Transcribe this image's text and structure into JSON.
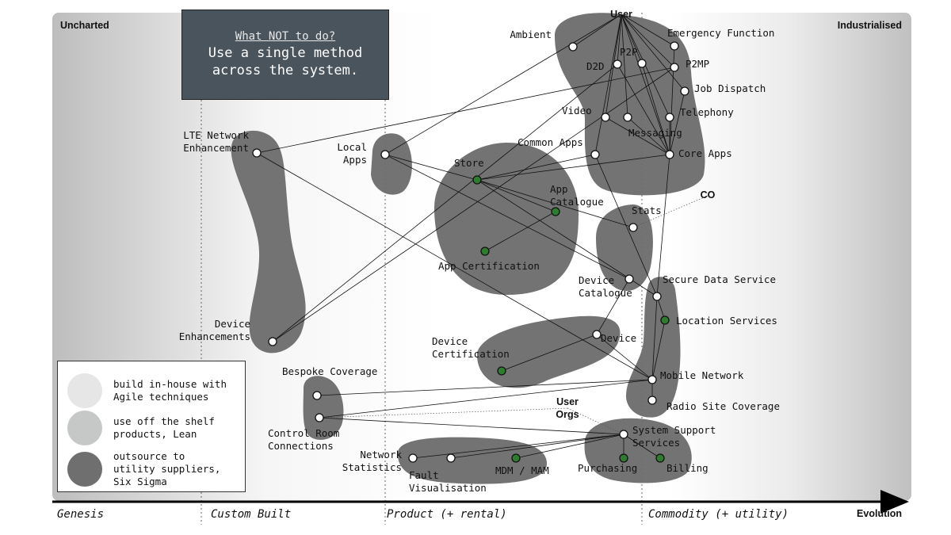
{
  "corners": {
    "left": "Uncharted",
    "right": "Industrialised"
  },
  "note": {
    "title": "What NOT to do?",
    "text": "Use a single method across the system."
  },
  "stages": [
    "Genesis",
    "Custom Built",
    "Product (+ rental)",
    "Commodity (+ utility)"
  ],
  "axis_label": "Evolution",
  "legend": [
    {
      "text": "build in-house with\nAgile techniques",
      "color": "#e6e6e6"
    },
    {
      "text": "use off the shelf\nproducts, Lean",
      "color": "#c6c8c8"
    },
    {
      "text": "outsource to\nutility suppliers,\nSix Sigma",
      "color": "#6f6f6f"
    }
  ],
  "colors": {
    "cluster": "#6b6b6b",
    "component": "#ffffff",
    "outsourced_component": "#2e7d2e",
    "note_bg": "#4a545c"
  },
  "anchors": [
    {
      "id": "user",
      "label": "User"
    },
    {
      "id": "co",
      "label": "CO"
    },
    {
      "id": "userorgs",
      "label": "User\nOrgs"
    }
  ],
  "components": [
    {
      "id": "ambient",
      "label": "Ambient",
      "type": "normal"
    },
    {
      "id": "emergency",
      "label": "Emergency Function",
      "type": "normal"
    },
    {
      "id": "p2p",
      "label": "P2P",
      "type": "normal"
    },
    {
      "id": "d2d",
      "label": "D2D",
      "type": "normal"
    },
    {
      "id": "p2mp",
      "label": "P2MP",
      "type": "normal"
    },
    {
      "id": "jobdispatch",
      "label": "Job Dispatch",
      "type": "normal"
    },
    {
      "id": "video",
      "label": "Video",
      "type": "normal"
    },
    {
      "id": "messaging",
      "label": "Messaging",
      "type": "normal"
    },
    {
      "id": "telephony",
      "label": "Telephony",
      "type": "normal"
    },
    {
      "id": "commonapps",
      "label": "Common Apps",
      "type": "normal"
    },
    {
      "id": "coreapps",
      "label": "Core Apps",
      "type": "normal"
    },
    {
      "id": "lte",
      "label": "LTE Network\nEnhancement",
      "type": "normal"
    },
    {
      "id": "localapps",
      "label": "Local\nApps",
      "type": "normal"
    },
    {
      "id": "store",
      "label": "Store",
      "type": "outsourced"
    },
    {
      "id": "appcatalogue",
      "label": "App\nCatalogue",
      "type": "outsourced"
    },
    {
      "id": "appcert",
      "label": "App Certification",
      "type": "outsourced"
    },
    {
      "id": "stats",
      "label": "Stats",
      "type": "normal"
    },
    {
      "id": "devicecatalogue",
      "label": "Device\nCatalogue",
      "type": "normal"
    },
    {
      "id": "securedata",
      "label": "Secure Data Service",
      "type": "normal"
    },
    {
      "id": "location",
      "label": "Location Services",
      "type": "outsourced"
    },
    {
      "id": "deviceenh",
      "label": "Device\nEnhancements",
      "type": "normal"
    },
    {
      "id": "devicecert",
      "label": "Device\nCertification",
      "type": "outsourced"
    },
    {
      "id": "device",
      "label": "Device",
      "type": "normal"
    },
    {
      "id": "mobilenet",
      "label": "Mobile Network",
      "type": "normal"
    },
    {
      "id": "bespoke",
      "label": "Bespoke Coverage",
      "type": "normal"
    },
    {
      "id": "radiosite",
      "label": "Radio Site Coverage",
      "type": "normal"
    },
    {
      "id": "controlroom",
      "label": "Control Room\nConnections",
      "type": "normal"
    },
    {
      "id": "systemsupport",
      "label": "System Support\nServices",
      "type": "normal"
    },
    {
      "id": "networkstats",
      "label": "Network\nStatistics",
      "type": "normal"
    },
    {
      "id": "fault",
      "label": "Fault\nVisualisation",
      "type": "normal"
    },
    {
      "id": "mdm",
      "label": "MDM / MAM",
      "type": "outsourced"
    },
    {
      "id": "purchasing",
      "label": "Purchasing",
      "type": "outsourced"
    },
    {
      "id": "billing",
      "label": "Billing",
      "type": "outsourced"
    }
  ],
  "links": [
    [
      "user",
      "ambient"
    ],
    [
      "user",
      "emergency"
    ],
    [
      "user",
      "p2p"
    ],
    [
      "user",
      "d2d"
    ],
    [
      "user",
      "p2mp"
    ],
    [
      "user",
      "jobdispatch"
    ],
    [
      "user",
      "video"
    ],
    [
      "user",
      "messaging"
    ],
    [
      "user",
      "telephony"
    ],
    [
      "user",
      "commonapps"
    ],
    [
      "user",
      "coreapps"
    ],
    [
      "user",
      "localapps"
    ],
    [
      "video",
      "coreapps"
    ],
    [
      "messaging",
      "coreapps"
    ],
    [
      "telephony",
      "coreapps"
    ],
    [
      "p2p",
      "coreapps"
    ],
    [
      "d2d",
      "coreapps"
    ],
    [
      "emergency",
      "coreapps"
    ],
    [
      "jobdispatch",
      "coreapps"
    ],
    [
      "p2mp",
      "lte"
    ],
    [
      "d2d",
      "deviceenh"
    ],
    [
      "p2mp",
      "deviceenh"
    ],
    [
      "commonapps",
      "store"
    ],
    [
      "coreapps",
      "store"
    ],
    [
      "commonapps",
      "securedata"
    ],
    [
      "coreapps",
      "securedata"
    ],
    [
      "store",
      "appcatalogue"
    ],
    [
      "store",
      "stats"
    ],
    [
      "appcatalogue",
      "appcert"
    ],
    [
      "localapps",
      "store"
    ],
    [
      "localapps",
      "devicecatalogue"
    ],
    [
      "store",
      "securedata"
    ],
    [
      "lte",
      "mobilenet"
    ],
    [
      "securedata",
      "location"
    ],
    [
      "securedata",
      "mobilenet"
    ],
    [
      "location",
      "mobilenet"
    ],
    [
      "devicecatalogue",
      "device"
    ],
    [
      "device",
      "devicecert"
    ],
    [
      "device",
      "mobilenet"
    ],
    [
      "mobilenet",
      "bespoke"
    ],
    [
      "mobilenet",
      "controlroom"
    ],
    [
      "mobilenet",
      "radiosite"
    ],
    [
      "controlroom",
      "systemsupport"
    ],
    [
      "systemsupport",
      "networkstats"
    ],
    [
      "systemsupport",
      "fault"
    ],
    [
      "systemsupport",
      "mdm"
    ],
    [
      "systemsupport",
      "purchasing"
    ],
    [
      "systemsupport",
      "billing"
    ]
  ],
  "dotted_links": [
    [
      "co",
      "stats"
    ],
    [
      "userorgs",
      "systemsupport"
    ],
    [
      "userorgs",
      "controlroom"
    ]
  ]
}
